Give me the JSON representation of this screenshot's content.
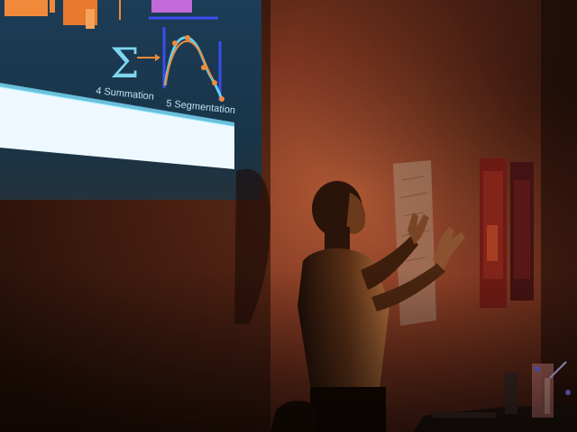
{
  "slide": {
    "step4_label": "4 Summation",
    "step5_label": "5 Segmentation",
    "sigma_symbol": "Σ"
  },
  "colors": {
    "screen_blue": "#1f4a66",
    "screen_white_band": "#eef9ff",
    "wall_warm": "#8a3d25",
    "wall_dark": "#3a1a10",
    "curve_cyan": "#5fd3f3",
    "curve_orange": "#f08a3a",
    "axis_blue": "#3a4df0",
    "poster_red": "#6e1a14"
  }
}
